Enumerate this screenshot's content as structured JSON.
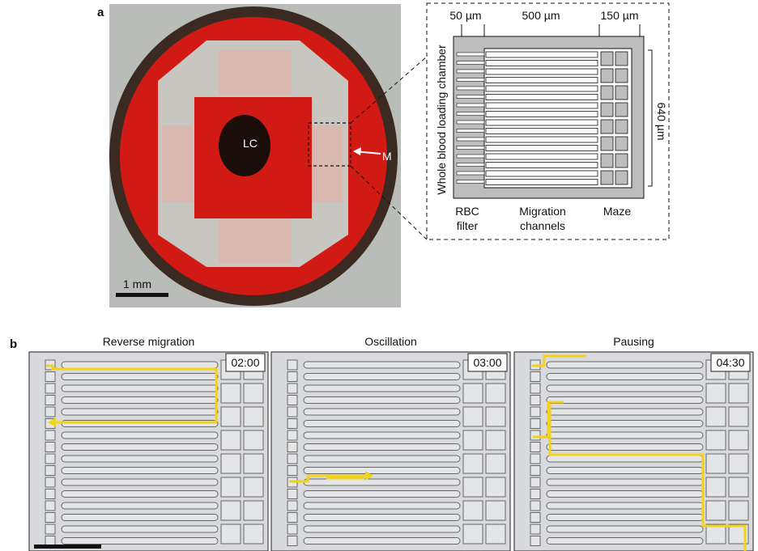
{
  "panel_a": {
    "label": "a",
    "photo": {
      "center_label": "LC",
      "arrow_label": "M",
      "scale_bar": "1 mm"
    },
    "schematic": {
      "dimensions": [
        "50 µm",
        "500 µm",
        "150 µm"
      ],
      "height": "640 µm",
      "side_label": "Whole blood loading chamber",
      "regions": [
        [
          "RBC",
          "filter"
        ],
        [
          "Migration",
          "channels"
        ],
        [
          "Maze"
        ]
      ]
    }
  },
  "panel_b": {
    "label": "b",
    "frames": [
      {
        "title": "Reverse migration",
        "time": "02:00"
      },
      {
        "title": "Oscillation",
        "time": "03:00"
      },
      {
        "title": "Pausing",
        "time": "04:30"
      }
    ]
  }
}
